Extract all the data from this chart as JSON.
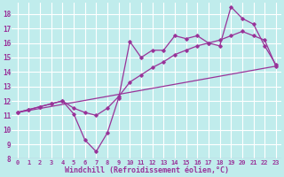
{
  "bg_color": "#c0ecec",
  "grid_color": "#ffffff",
  "line_color": "#993399",
  "tick_color": "#993399",
  "xlabel": "Windchill (Refroidissement éolien,°C)",
  "ylim": [
    8,
    18.8
  ],
  "xlim": [
    -0.5,
    23.5
  ],
  "yticks": [
    8,
    9,
    10,
    11,
    12,
    13,
    14,
    15,
    16,
    17,
    18
  ],
  "xticks": [
    0,
    1,
    2,
    3,
    4,
    5,
    6,
    7,
    8,
    9,
    10,
    11,
    12,
    13,
    14,
    15,
    16,
    17,
    18,
    19,
    20,
    21,
    22,
    23
  ],
  "line1_x": [
    0,
    1,
    2,
    3,
    4,
    5,
    6,
    7,
    8,
    9,
    10,
    11,
    12,
    13,
    14,
    15,
    16,
    17,
    18,
    19,
    20,
    21,
    22,
    23
  ],
  "line1_y": [
    11.2,
    11.4,
    11.6,
    11.8,
    12.0,
    11.1,
    9.3,
    8.5,
    9.8,
    12.2,
    16.1,
    15.0,
    15.5,
    15.5,
    16.5,
    16.3,
    16.5,
    16.0,
    15.8,
    18.5,
    17.7,
    17.3,
    15.8,
    14.5
  ],
  "line2_x": [
    0,
    1,
    2,
    3,
    4,
    5,
    6,
    7,
    8,
    9,
    10,
    11,
    12,
    13,
    14,
    15,
    16,
    17,
    18,
    19,
    20,
    21,
    22,
    23
  ],
  "line2_y": [
    11.2,
    11.4,
    11.6,
    11.8,
    12.0,
    11.5,
    11.2,
    11.0,
    11.5,
    12.3,
    13.3,
    13.8,
    14.3,
    14.7,
    15.2,
    15.5,
    15.8,
    16.0,
    16.2,
    16.5,
    16.8,
    16.5,
    16.2,
    14.4
  ],
  "line3_x": [
    0,
    23
  ],
  "line3_y": [
    11.2,
    14.4
  ]
}
